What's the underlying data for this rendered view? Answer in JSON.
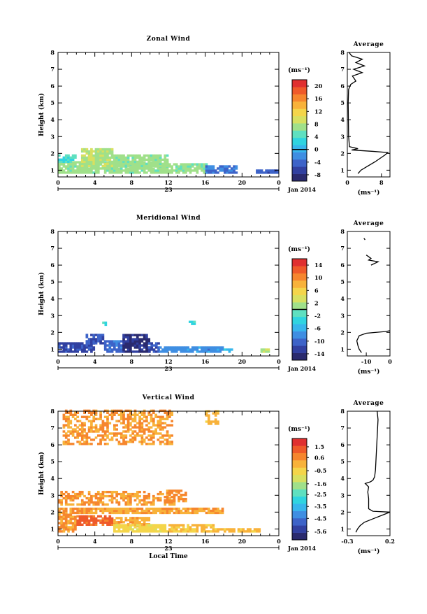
{
  "chart_data": [
    {
      "type": "heatmap",
      "title": "Zonal Wind",
      "ylabel": "Height (km)",
      "xlim": [
        0,
        24
      ],
      "ylim": [
        0.6,
        8
      ],
      "xticks": [
        "0",
        "4",
        "8",
        "12",
        "16",
        "20",
        "0"
      ],
      "yticks": [
        "1",
        "2",
        "3",
        "4",
        "5",
        "6",
        "7",
        "8"
      ],
      "date_day": "23",
      "date_month": "Jan 2014",
      "colorbar": {
        "unit": "(ms⁻¹)",
        "ticks": [
          "20",
          "16",
          "12",
          "8",
          "4",
          "0",
          "-4",
          "-8"
        ],
        "vmin": -10,
        "vmax": 22,
        "zero_line": 0,
        "palette": [
          "#2a2a6e",
          "#3140a0",
          "#3d63c8",
          "#3f8ee2",
          "#37b6ec",
          "#30d4e0",
          "#5fe0c0",
          "#a0e08a",
          "#d8e060",
          "#f4d54a",
          "#f8b23a",
          "#f6862e",
          "#ef5a2a",
          "#e03030"
        ]
      },
      "zones": [
        {
          "t0": 0,
          "t1": 12,
          "z0": 0.8,
          "z1": 1.45,
          "value": 7
        },
        {
          "t0": 0,
          "t1": 2,
          "z0": 1.45,
          "z1": 1.9,
          "value": 4
        },
        {
          "t0": 2.5,
          "t1": 6,
          "z0": 1.2,
          "z1": 2.3,
          "value": 8
        },
        {
          "t0": 6,
          "t1": 12,
          "z0": 1.2,
          "z1": 1.9,
          "value": 7
        },
        {
          "t0": 12,
          "t1": 16.5,
          "z0": 0.8,
          "z1": 1.3,
          "value": 7
        },
        {
          "t0": 16,
          "t1": 19.5,
          "z0": 0.8,
          "z1": 1.2,
          "value": -3
        },
        {
          "t0": 21.5,
          "t1": 24,
          "z0": 0.8,
          "z1": 1.0,
          "value": -5
        }
      ],
      "profile": {
        "title": "Average",
        "xlabel": "(ms⁻¹)",
        "xlim": [
          0,
          10
        ],
        "xticks": [
          "0",
          "8"
        ],
        "points": [
          [
            2.5,
            0.8
          ],
          [
            3.2,
            1.0
          ],
          [
            4.5,
            1.2
          ],
          [
            6.5,
            1.5
          ],
          [
            8.8,
            1.9
          ],
          [
            9.5,
            2.05
          ],
          [
            6,
            2.12
          ],
          [
            1,
            2.2
          ],
          [
            2.5,
            2.28
          ],
          [
            0.5,
            2.4
          ],
          [
            0.3,
            3
          ],
          [
            0.2,
            5
          ],
          [
            0.3,
            5.8
          ],
          [
            0.8,
            6.1
          ],
          [
            2,
            6.3
          ],
          [
            1.2,
            6.6
          ],
          [
            3.5,
            6.8
          ],
          [
            1.5,
            7.0
          ],
          [
            4,
            7.2
          ],
          [
            2,
            7.4
          ],
          [
            3.5,
            7.6
          ],
          [
            1,
            7.8
          ],
          [
            0.4,
            8
          ]
        ]
      }
    },
    {
      "type": "heatmap",
      "title": "Meridional Wind",
      "ylabel": "Height (km)",
      "xlim": [
        0,
        24
      ],
      "ylim": [
        0.6,
        8
      ],
      "xticks": [
        "0",
        "4",
        "8",
        "12",
        "16",
        "20",
        "0"
      ],
      "yticks": [
        "1",
        "2",
        "3",
        "4",
        "5",
        "6",
        "7",
        "8"
      ],
      "date_day": "23",
      "date_month": "Jan 2014",
      "colorbar": {
        "unit": "(ms⁻¹)",
        "ticks": [
          "14",
          "10",
          "6",
          "2",
          "-2",
          "-6",
          "-10",
          "-14"
        ],
        "vmin": -16,
        "vmax": 16,
        "zero_line": 0,
        "palette": [
          "#2a2a6e",
          "#3140a0",
          "#3d63c8",
          "#3f8ee2",
          "#37b6ec",
          "#30d4e0",
          "#5fe0c0",
          "#a0e08a",
          "#d8e060",
          "#f4d54a",
          "#f8b23a",
          "#f6862e",
          "#ef5a2a",
          "#e03030"
        ]
      },
      "zones": [
        {
          "t0": 0,
          "t1": 4,
          "z0": 0.8,
          "z1": 1.4,
          "value": -12
        },
        {
          "t0": 3,
          "t1": 5,
          "z0": 1.3,
          "z1": 1.9,
          "value": -11
        },
        {
          "t0": 5,
          "t1": 7,
          "z0": 0.8,
          "z1": 1.45,
          "value": -10
        },
        {
          "t0": 7,
          "t1": 9.8,
          "z0": 0.8,
          "z1": 1.8,
          "value": -14
        },
        {
          "t0": 9.8,
          "t1": 11,
          "z0": 0.8,
          "z1": 1.4,
          "value": -11
        },
        {
          "t0": 11,
          "t1": 18,
          "z0": 0.8,
          "z1": 1.15,
          "value": -8
        },
        {
          "t0": 18,
          "t1": 19,
          "z0": 0.8,
          "z1": 1.0,
          "value": -5
        },
        {
          "t0": 22,
          "t1": 23,
          "z0": 0.8,
          "z1": 0.95,
          "value": 2
        },
        {
          "t0": 4.8,
          "t1": 5.3,
          "z0": 2.4,
          "z1": 2.6,
          "value": -3
        },
        {
          "t0": 14.2,
          "t1": 14.8,
          "z0": 2.45,
          "z1": 2.6,
          "value": -3
        }
      ],
      "profile": {
        "title": "Average",
        "xlabel": "(ms⁻¹)",
        "xlim": [
          -18,
          0
        ],
        "xticks": [
          "-10",
          "0"
        ],
        "points": [
          [
            -12,
            0.8
          ],
          [
            -13,
            1.0
          ],
          [
            -13.5,
            1.2
          ],
          [
            -14,
            1.5
          ],
          [
            -13,
            1.8
          ],
          [
            -10,
            1.95
          ],
          [
            -2,
            2.05
          ],
          [
            0,
            2.1
          ]
        ],
        "points2": [
          [
            -10,
            6.6
          ],
          [
            -8,
            6.4
          ],
          [
            -9,
            6.3
          ],
          [
            -5,
            6.2
          ],
          [
            -8,
            6.0
          ]
        ],
        "points3": [
          [
            -11,
            7.6
          ],
          [
            -10.5,
            7.5
          ]
        ]
      }
    },
    {
      "type": "heatmap",
      "title": "Vertical Wind",
      "ylabel": "Height (km)",
      "xlabel": "Local Time",
      "xlim": [
        0,
        24
      ],
      "ylim": [
        0.6,
        8
      ],
      "xticks": [
        "0",
        "4",
        "8",
        "12",
        "16",
        "20",
        "0"
      ],
      "yticks": [
        "1",
        "2",
        "3",
        "4",
        "5",
        "6",
        "7",
        "8"
      ],
      "date_day": "23",
      "date_month": "Jan 2014",
      "colorbar": {
        "unit": "(ms⁻¹)",
        "ticks": [
          "1.5",
          "0.6",
          "-0.5",
          "-1.6",
          "-2.5",
          "-3.5",
          "-4.5",
          "-5.6"
        ],
        "vmin": -6.3,
        "vmax": 2.2,
        "palette": [
          "#2a2a6e",
          "#3140a0",
          "#3d63c8",
          "#3f8ee2",
          "#37b6ec",
          "#30d4e0",
          "#5fe0c0",
          "#a0e08a",
          "#d8e060",
          "#f4d54a",
          "#f8b23a",
          "#f6862e",
          "#ef5a2a",
          "#e03030"
        ]
      },
      "zones": [
        {
          "t0": 0.5,
          "t1": 12.5,
          "z0": 6.0,
          "z1": 8.0,
          "value": 0.4
        },
        {
          "t0": 16,
          "t1": 17.5,
          "z0": 7.2,
          "z1": 8.0,
          "value": 0.0
        },
        {
          "t0": 0,
          "t1": 13,
          "z0": 2.4,
          "z1": 3.2,
          "value": 0.4
        },
        {
          "t0": 11.5,
          "t1": 14,
          "z0": 2.6,
          "z1": 3.3,
          "value": 0.6
        },
        {
          "t0": 0,
          "t1": 18,
          "z0": 1.9,
          "z1": 2.2,
          "value": 0.3
        },
        {
          "t0": 0,
          "t1": 2,
          "z0": 0.8,
          "z1": 1.8,
          "value": 0.5
        },
        {
          "t0": 2,
          "t1": 6,
          "z0": 1.2,
          "z1": 1.8,
          "value": 1.2
        },
        {
          "t0": 6,
          "t1": 10,
          "z0": 1.1,
          "z1": 1.6,
          "value": 0.2
        },
        {
          "t0": 6,
          "t1": 12,
          "z0": 0.8,
          "z1": 1.2,
          "value": -0.6
        },
        {
          "t0": 12,
          "t1": 17,
          "z0": 0.8,
          "z1": 1.2,
          "value": -0.1
        },
        {
          "t0": 17,
          "t1": 22,
          "z0": 0.8,
          "z1": 1.0,
          "value": 0.0
        }
      ],
      "profile": {
        "title": "Average",
        "xlabel": "(ms⁻¹)",
        "xlim": [
          -0.3,
          0.2
        ],
        "xticks": [
          "-0.3",
          "0.2"
        ],
        "points": [
          [
            -0.2,
            0.8
          ],
          [
            -0.18,
            1.0
          ],
          [
            -0.15,
            1.2
          ],
          [
            -0.1,
            1.4
          ],
          [
            0.0,
            1.6
          ],
          [
            0.1,
            1.8
          ],
          [
            0.15,
            1.9
          ],
          [
            0.2,
            2.0
          ],
          [
            0.0,
            2.05
          ],
          [
            -0.05,
            2.2
          ],
          [
            -0.05,
            2.8
          ],
          [
            -0.06,
            3.2
          ],
          [
            -0.05,
            3.5
          ],
          [
            -0.09,
            3.7
          ],
          [
            -0.03,
            3.8
          ],
          [
            0.0,
            3.9
          ],
          [
            0.02,
            4.1
          ],
          [
            0.03,
            4.5
          ],
          [
            0.04,
            5.5
          ],
          [
            0.05,
            6.5
          ],
          [
            0.06,
            7.5
          ],
          [
            0.05,
            8
          ]
        ]
      }
    }
  ]
}
